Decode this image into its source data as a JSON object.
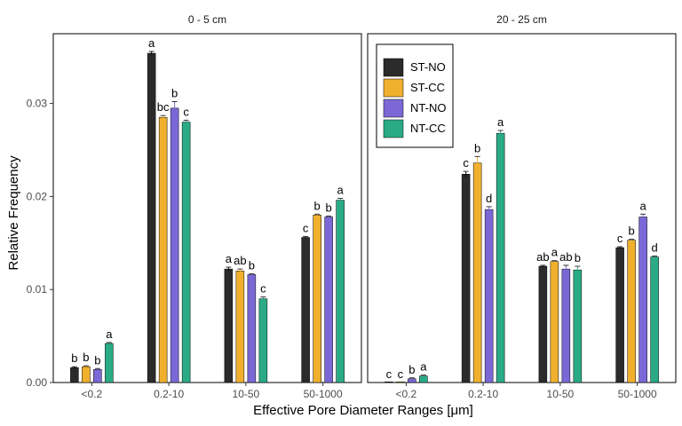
{
  "chart_data": {
    "type": "bar",
    "ylabel": "Relative Frequency",
    "xlabel": "Effective Pore Diameter Ranges [μm]",
    "categories": [
      "<0.2",
      "0.2-10",
      "10-50",
      "50-1000"
    ],
    "ylim": [
      0,
      0.0375
    ],
    "yticks": [
      0.0,
      0.01,
      0.02,
      0.03
    ],
    "ytick_labels": [
      "0.00",
      "0.01",
      "0.02",
      "0.03"
    ],
    "grid": false,
    "legend_placement": "top-left of right panel",
    "series_meta": [
      {
        "name": "ST-NO",
        "color": "#2b2b2b"
      },
      {
        "name": "ST-CC",
        "color": "#f0b02e"
      },
      {
        "name": "NT-NO",
        "color": "#7b68d6"
      },
      {
        "name": "NT-CC",
        "color": "#2aab86"
      }
    ],
    "panels": [
      {
        "title": "0 - 5 cm",
        "series": [
          {
            "name": "ST-NO",
            "values": [
              0.0016,
              0.0354,
              0.0122,
              0.0156
            ],
            "errors": [
              0.0001,
              0.0002,
              0.0002,
              0.0001
            ],
            "letters": [
              "b",
              "a",
              "a",
              "c"
            ]
          },
          {
            "name": "ST-CC",
            "values": [
              0.0017,
              0.0285,
              0.012,
              0.018
            ],
            "errors": [
              0.0001,
              0.0002,
              0.0002,
              0.0001
            ],
            "letters": [
              "b",
              "bc",
              "ab",
              "b"
            ]
          },
          {
            "name": "NT-NO",
            "values": [
              0.0014,
              0.0295,
              0.0116,
              0.0178
            ],
            "errors": [
              0.0001,
              0.0007,
              0.0001,
              0.0001
            ],
            "letters": [
              "b",
              "b",
              "b",
              "b"
            ]
          },
          {
            "name": "NT-CC",
            "values": [
              0.0042,
              0.028,
              0.009,
              0.0196
            ],
            "errors": [
              0.0001,
              0.0002,
              0.0002,
              0.0002
            ],
            "letters": [
              "a",
              "c",
              "c",
              "a"
            ]
          }
        ]
      },
      {
        "title": "20 - 25 cm",
        "series": [
          {
            "name": "ST-NO",
            "values": [
              0.0,
              0.0224,
              0.0125,
              0.0145
            ],
            "errors": [
              0.0,
              0.0003,
              0.0001,
              0.0001
            ],
            "letters": [
              "c",
              "c",
              "ab",
              "c"
            ]
          },
          {
            "name": "ST-CC",
            "values": [
              0.0,
              0.0236,
              0.013,
              0.0153
            ],
            "errors": [
              0.0,
              0.0007,
              0.0001,
              0.0001
            ],
            "letters": [
              "c",
              "b",
              "a",
              "b"
            ]
          },
          {
            "name": "NT-NO",
            "values": [
              0.0004,
              0.0186,
              0.0122,
              0.0178
            ],
            "errors": [
              0.0001,
              0.0003,
              0.0004,
              0.0003
            ],
            "letters": [
              "b",
              "d",
              "ab",
              "a"
            ]
          },
          {
            "name": "NT-CC",
            "values": [
              0.0007,
              0.0268,
              0.0121,
              0.0135
            ],
            "errors": [
              0.0001,
              0.0003,
              0.0004,
              0.0001
            ],
            "letters": [
              "a",
              "a",
              "b",
              "d"
            ]
          }
        ]
      }
    ]
  }
}
